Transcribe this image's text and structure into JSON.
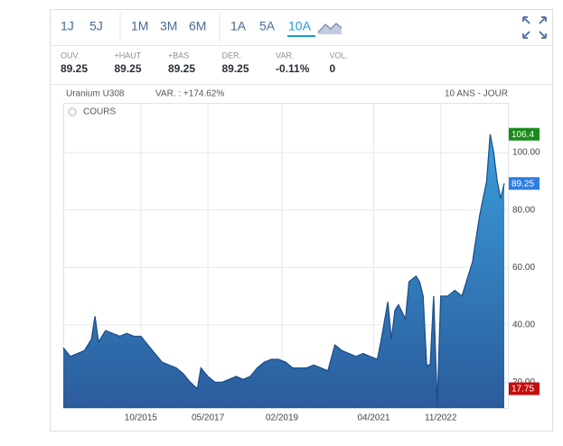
{
  "toolbar": {
    "groups": [
      [
        "1J",
        "5J"
      ],
      [
        "1M",
        "3M",
        "6M"
      ],
      [
        "1A",
        "5A",
        "10A"
      ]
    ],
    "active": "10A"
  },
  "stats": [
    {
      "label": "OUV.",
      "value": "89.25"
    },
    {
      "label": "+HAUT",
      "value": "89.25"
    },
    {
      "label": "+BAS",
      "value": "89.25"
    },
    {
      "label": "DER.",
      "value": "89.25"
    },
    {
      "label": "VAR.",
      "value": "-0.11%",
      "negative": true
    },
    {
      "label": "VOL.",
      "value": "0"
    }
  ],
  "chart_header": {
    "instrument": "Uranium U308",
    "change": "VAR. : +174.62%",
    "period": "10 ANS - JOUR",
    "legend": "COURS"
  },
  "chart_data": {
    "type": "area",
    "color": "#1e4f8c",
    "fill_top": "#3a9ddb",
    "fill_bottom": "#2b5c9c",
    "grid": true,
    "x": [
      "2013-12",
      "2014-02",
      "2014-04",
      "2014-06",
      "2014-08",
      "2014-09",
      "2014-10",
      "2014-12",
      "2015-02",
      "2015-04",
      "2015-06",
      "2015-08",
      "2015-10",
      "2015-12",
      "2016-02",
      "2016-04",
      "2016-06",
      "2016-08",
      "2016-10",
      "2016-12",
      "2017-02",
      "2017-03",
      "2017-05",
      "2017-07",
      "2017-09",
      "2017-11",
      "2018-01",
      "2018-03",
      "2018-05",
      "2018-07",
      "2018-09",
      "2018-11",
      "2019-01",
      "2019-03",
      "2019-05",
      "2019-07",
      "2019-09",
      "2019-11",
      "2020-01",
      "2020-03",
      "2020-05",
      "2020-07",
      "2020-09",
      "2020-11",
      "2021-01",
      "2021-03",
      "2021-05",
      "2021-06",
      "2021-08",
      "2021-09",
      "2021-10",
      "2021-11",
      "2022-01",
      "2022-02",
      "2022-04",
      "2022-05",
      "2022-06",
      "2022-07",
      "2022-08",
      "2022-09",
      "2022-10",
      "2022-11",
      "2023-01",
      "2023-03",
      "2023-05",
      "2023-07",
      "2023-08",
      "2023-09",
      "2023-10",
      "2023-12",
      "2024-01",
      "2024-02",
      "2024-03",
      "2024-04",
      "2024-05"
    ],
    "values": [
      32,
      29,
      30,
      31,
      35,
      43,
      34,
      38,
      37,
      36,
      37,
      36,
      36,
      33,
      30,
      27,
      26,
      25,
      23,
      20,
      17.75,
      25,
      22,
      20,
      20,
      21,
      22,
      21,
      22,
      25,
      27,
      28,
      28,
      27,
      25,
      25,
      25,
      26,
      25,
      24,
      33,
      31,
      30,
      29,
      30,
      29,
      28,
      34,
      48,
      35,
      45,
      47,
      42,
      55,
      57,
      55,
      50,
      26,
      26,
      50,
      12,
      50,
      50,
      52,
      50,
      58,
      62,
      70,
      78,
      90,
      106.4,
      100,
      90,
      84,
      89.25
    ],
    "ylim": [
      11,
      117
    ],
    "yticks": [
      {
        "value": 20,
        "label": "20.00"
      },
      {
        "value": 40,
        "label": "40.00"
      },
      {
        "value": 60,
        "label": "60.00"
      },
      {
        "value": 80,
        "label": "80.00"
      },
      {
        "value": 100,
        "label": "100.00"
      }
    ],
    "xticks": [
      {
        "value": "2015-10",
        "label": "10/2015"
      },
      {
        "value": "2017-05",
        "label": "05/2017"
      },
      {
        "value": "2019-02",
        "label": "02/2019"
      },
      {
        "value": "2021-04",
        "label": "04/2021"
      },
      {
        "value": "2022-11",
        "label": "11/2022"
      }
    ],
    "badges": [
      {
        "value": 106.4,
        "color": "#1a8a1a"
      },
      {
        "value": 89.25,
        "color": "#2f7de1"
      },
      {
        "value": 17.75,
        "color": "#c40d0d"
      }
    ]
  }
}
